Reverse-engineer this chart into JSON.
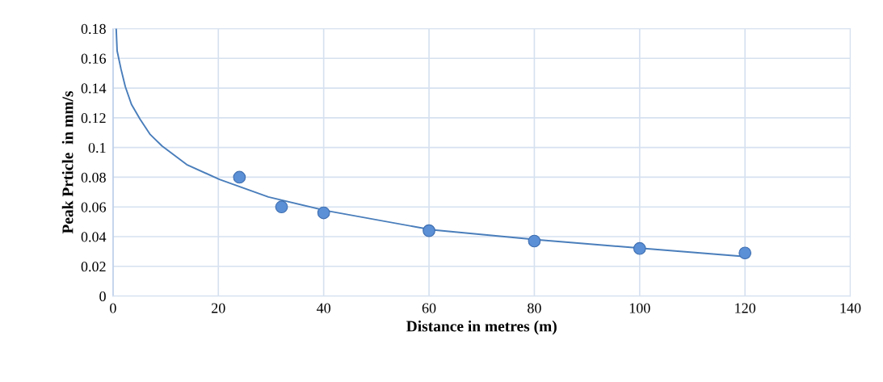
{
  "chart_data": {
    "type": "scatter",
    "xlabel": "Distance in metres (m)",
    "ylabel": "Peak Prticle  in mm/s",
    "xlim": [
      0,
      140
    ],
    "xticks": [
      0,
      20,
      40,
      60,
      80,
      100,
      120,
      140
    ],
    "ylim": [
      0,
      0.18
    ],
    "yticks": [
      0,
      0.02,
      0.04,
      0.06,
      0.08,
      0.1,
      0.12,
      0.14,
      0.16,
      0.18
    ],
    "grid": true,
    "series": [
      {
        "color": "#5b8fd6",
        "marker": "circle",
        "x": [
          24,
          32,
          40,
          60,
          80,
          100,
          120
        ],
        "values": [
          0.08,
          0.06,
          0.056,
          0.044,
          0.037,
          0.032,
          0.029
        ]
      },
      {
        "type": "line",
        "color": "#4a7ebb",
        "marker": "none",
        "x": [
          0.6,
          0.78,
          1.5,
          2.33,
          3.5,
          5.15,
          7,
          9.3,
          14,
          20.2,
          29.5,
          40.3,
          60.5,
          80.8,
          101,
          120
        ],
        "values": [
          0.18,
          0.165,
          0.153,
          0.141,
          0.129,
          0.119,
          0.109,
          0.101,
          0.0885,
          0.0785,
          0.0667,
          0.0576,
          0.0446,
          0.0378,
          0.032,
          0.0266
        ]
      }
    ]
  }
}
